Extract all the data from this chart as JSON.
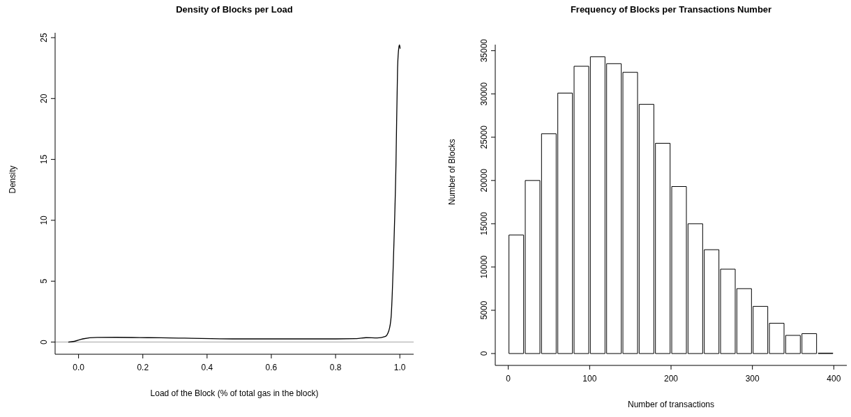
{
  "chart_data": [
    {
      "type": "line",
      "title": "Density of Blocks per Load",
      "xlabel": "Load of the Block (% of total gas in the block)",
      "ylabel": "Density",
      "color": "#000000",
      "x": [
        -0.032,
        -0.013,
        0.013,
        0.058,
        0.117,
        0.22,
        0.33,
        0.48,
        0.63,
        0.78,
        0.865,
        0.895,
        0.93,
        0.954,
        0.966,
        0.973,
        0.98,
        0.988,
        0.993,
        0.997,
        0.999,
        1.001
      ],
      "values": [
        0,
        0.06,
        0.26,
        0.38,
        0.39,
        0.36,
        0.32,
        0.26,
        0.26,
        0.26,
        0.28,
        0.36,
        0.34,
        0.45,
        0.95,
        2.1,
        6.7,
        14.6,
        22.5,
        24.2,
        24.4,
        24.1
      ],
      "xlim": [
        -0.073,
        1.043
      ],
      "ylim": [
        -1,
        25.4
      ],
      "xticks": [
        {
          "value": 0,
          "label": "0.0"
        },
        {
          "value": 0.2,
          "label": "0.2"
        },
        {
          "value": 0.4,
          "label": "0.4"
        },
        {
          "value": 0.6,
          "label": "0.6"
        },
        {
          "value": 0.8,
          "label": "0.8"
        },
        {
          "value": 1,
          "label": "1.0"
        }
      ],
      "yticks": [
        0,
        5,
        10,
        15,
        20,
        25
      ],
      "ref_lines": [
        {
          "axis": "y",
          "value": 0,
          "color": "#bebebe"
        }
      ]
    },
    {
      "type": "histogram",
      "title": "Frequency of Blocks per Transactions Number",
      "xlabel": "Number of transactions",
      "ylabel": "Number of Blocks",
      "color": "#ffffff",
      "bins": [
        0,
        20,
        40,
        60,
        80,
        100,
        120,
        140,
        160,
        180,
        200,
        220,
        240,
        260,
        280,
        300,
        320,
        340,
        360,
        380,
        400
      ],
      "values": [
        13700,
        20000,
        25400,
        30100,
        33200,
        34300,
        33500,
        32500,
        28800,
        24300,
        19300,
        15000,
        12000,
        9750,
        7500,
        5450,
        3500,
        2100,
        2300,
        50
      ],
      "xlim": [
        -16,
        416
      ],
      "ylim": [
        -1370,
        35700
      ],
      "xticks": [
        0,
        100,
        200,
        300,
        400
      ],
      "yticks": [
        0,
        5000,
        10000,
        15000,
        20000,
        25000,
        30000,
        35000
      ]
    }
  ]
}
